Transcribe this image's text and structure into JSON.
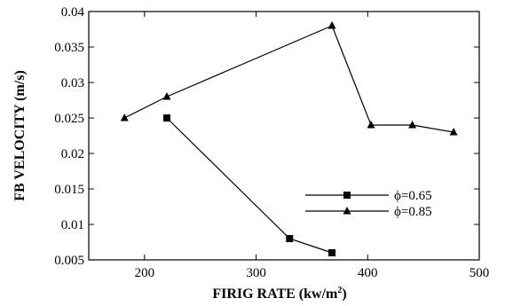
{
  "chart_data": {
    "type": "line",
    "xlabel": "FIRIG RATE (kw/m",
    "xlabel_sup": "2",
    "xlabel_end": ")",
    "ylabel": "FB VELOCITY (m/s)",
    "xlim": [
      150,
      500
    ],
    "ylim": [
      0.005,
      0.04
    ],
    "x_ticks": [
      {
        "value": 200,
        "label": "200"
      },
      {
        "value": 300,
        "label": "300"
      },
      {
        "value": 400,
        "label": "400"
      },
      {
        "value": 500,
        "label": "500"
      }
    ],
    "y_ticks": [
      {
        "value": 0.005,
        "label": "0.005"
      },
      {
        "value": 0.01,
        "label": "0.01"
      },
      {
        "value": 0.015,
        "label": "0.015"
      },
      {
        "value": 0.02,
        "label": "0.02"
      },
      {
        "value": 0.025,
        "label": "0.025"
      },
      {
        "value": 0.03,
        "label": "0.03"
      },
      {
        "value": 0.035,
        "label": "0.035"
      },
      {
        "value": 0.04,
        "label": "0.04"
      }
    ],
    "grid": false,
    "legend_position": "center-right",
    "series": [
      {
        "name": "ϕ=0.65",
        "marker": "square",
        "color": "#000000",
        "points": [
          {
            "x": 220,
            "y": 0.025
          },
          {
            "x": 330,
            "y": 0.008
          },
          {
            "x": 368,
            "y": 0.006
          }
        ]
      },
      {
        "name": "ϕ=0.85",
        "marker": "triangle",
        "color": "#000000",
        "points": [
          {
            "x": 182,
            "y": 0.025
          },
          {
            "x": 220,
            "y": 0.028
          },
          {
            "x": 368,
            "y": 0.038
          },
          {
            "x": 403,
            "y": 0.024
          },
          {
            "x": 440,
            "y": 0.024
          },
          {
            "x": 477,
            "y": 0.023
          }
        ]
      }
    ]
  }
}
